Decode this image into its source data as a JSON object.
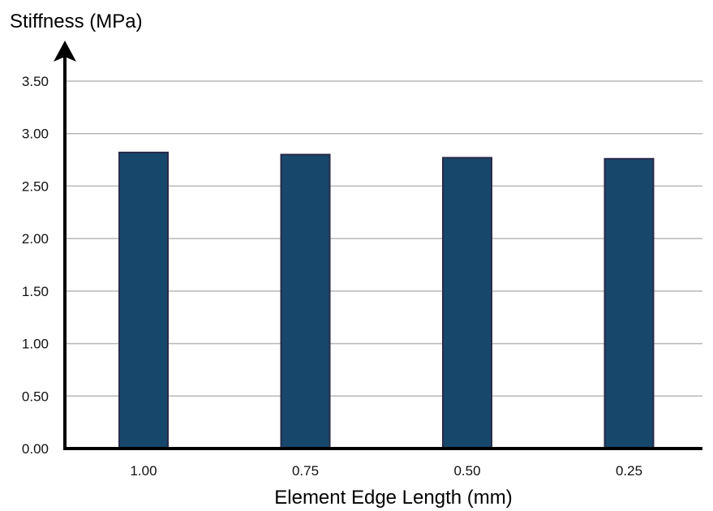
{
  "chart_data": {
    "type": "bar",
    "categories": [
      "1.00",
      "0.75",
      "0.50",
      "0.25"
    ],
    "values": [
      2.82,
      2.8,
      2.77,
      2.76
    ],
    "title": "",
    "xlabel": "Element Edge Length (mm)",
    "ylabel": "Stiffness (MPa)",
    "ylim": [
      0,
      3.5
    ],
    "yticks": [
      "0.00",
      "0.50",
      "1.00",
      "1.50",
      "2.00",
      "2.50",
      "3.00",
      "3.50"
    ],
    "grid": true,
    "legend": "none",
    "colors": {
      "bar": "#17476a",
      "bar_edge": "#2a2a4a",
      "grid": "#b8b8b8",
      "axis": "#000000"
    }
  }
}
